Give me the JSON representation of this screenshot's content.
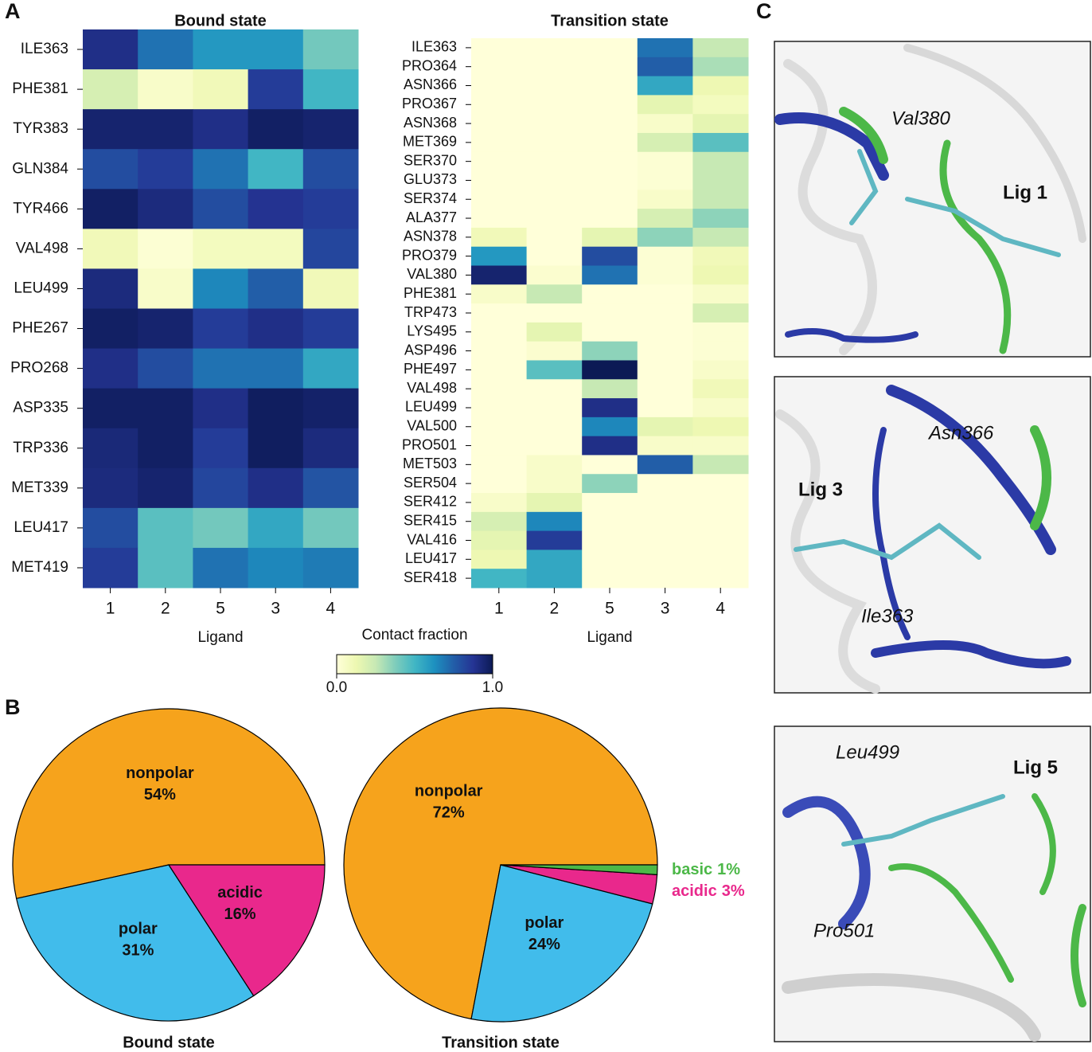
{
  "panels": {
    "a": "A",
    "b": "B",
    "c": "C"
  },
  "chart_data": [
    {
      "type": "heatmap",
      "title": "Bound state",
      "x_label": "Ligand",
      "x_categories": [
        "1",
        "2",
        "5",
        "3",
        "4"
      ],
      "y_categories": [
        "ILE363",
        "PHE381",
        "TYR383",
        "GLN384",
        "TYR466",
        "VAL498",
        "LEU499",
        "PHE267",
        "PRO268",
        "ASP335",
        "TRP336",
        "MET339",
        "LEU417",
        "MET419"
      ],
      "values": [
        [
          0.9,
          0.7,
          0.6,
          0.6,
          0.4
        ],
        [
          0.2,
          0.05,
          0.1,
          0.85,
          0.5
        ],
        [
          0.95,
          0.95,
          0.9,
          0.97,
          0.95
        ],
        [
          0.8,
          0.85,
          0.7,
          0.5,
          0.8
        ],
        [
          0.97,
          0.92,
          0.8,
          0.88,
          0.85
        ],
        [
          0.1,
          0.02,
          0.08,
          0.08,
          0.82
        ],
        [
          0.92,
          0.05,
          0.65,
          0.75,
          0.1
        ],
        [
          0.97,
          0.95,
          0.85,
          0.9,
          0.85
        ],
        [
          0.9,
          0.8,
          0.7,
          0.7,
          0.55
        ],
        [
          0.97,
          0.97,
          0.9,
          0.98,
          0.96
        ],
        [
          0.93,
          0.97,
          0.85,
          0.98,
          0.92
        ],
        [
          0.92,
          0.95,
          0.82,
          0.9,
          0.78
        ],
        [
          0.8,
          0.45,
          0.4,
          0.55,
          0.4
        ],
        [
          0.85,
          0.45,
          0.7,
          0.65,
          0.68
        ]
      ]
    },
    {
      "type": "heatmap",
      "title": "Transition state",
      "x_label": "Ligand",
      "x_categories": [
        "1",
        "2",
        "5",
        "3",
        "4"
      ],
      "y_categories": [
        "ILE363",
        "PRO364",
        "ASN366",
        "PRO367",
        "ASN368",
        "MET369",
        "SER370",
        "GLU373",
        "SER374",
        "ALA377",
        "ASN378",
        "PRO379",
        "VAL380",
        "PHE381",
        "TRP473",
        "LYS495",
        "ASP496",
        "PHE497",
        "VAL498",
        "LEU499",
        "VAL500",
        "PRO501",
        "MET503",
        "SER504",
        "SER412",
        "SER415",
        "VAL416",
        "LEU417",
        "SER418"
      ],
      "values": [
        [
          0,
          0,
          0,
          0.7,
          0.25
        ],
        [
          0,
          0,
          0,
          0.75,
          0.3
        ],
        [
          0,
          0,
          0,
          0.55,
          0.12
        ],
        [
          0,
          0,
          0,
          0.15,
          0.08
        ],
        [
          0,
          0,
          0,
          0.05,
          0.15
        ],
        [
          0,
          0,
          0,
          0.2,
          0.45
        ],
        [
          0,
          0,
          0,
          0.02,
          0.25
        ],
        [
          0,
          0,
          0,
          0.02,
          0.25
        ],
        [
          0,
          0,
          0,
          0.05,
          0.25
        ],
        [
          0,
          0,
          0,
          0.2,
          0.35
        ],
        [
          0.1,
          0,
          0.15,
          0.35,
          0.25
        ],
        [
          0.6,
          0,
          0.8,
          0.02,
          0.1
        ],
        [
          0.95,
          0.03,
          0.7,
          0.02,
          0.12
        ],
        [
          0.05,
          0.25,
          0,
          0,
          0.05
        ],
        [
          0,
          0,
          0,
          0,
          0.2
        ],
        [
          0,
          0.15,
          0,
          0,
          0.02
        ],
        [
          0,
          0.03,
          0.35,
          0,
          0.02
        ],
        [
          0,
          0.45,
          1.0,
          0,
          0.05
        ],
        [
          0,
          0,
          0.25,
          0,
          0.1
        ],
        [
          0,
          0,
          0.9,
          0,
          0.05
        ],
        [
          0,
          0,
          0.65,
          0.15,
          0.12
        ],
        [
          0,
          0,
          0.9,
          0.05,
          0.05
        ],
        [
          0,
          0.05,
          0,
          0.75,
          0.25
        ],
        [
          0,
          0.05,
          0.35,
          0,
          0
        ],
        [
          0.05,
          0.15,
          0,
          0,
          0
        ],
        [
          0.2,
          0.65,
          0,
          0,
          0
        ],
        [
          0.15,
          0.85,
          0,
          0,
          0
        ],
        [
          0.12,
          0.55,
          0,
          0,
          0
        ],
        [
          0.5,
          0.55,
          0,
          0,
          0
        ]
      ]
    },
    {
      "type": "colorbar",
      "title": "Contact fraction",
      "lim": [
        0,
        1
      ],
      "ticks": [
        {
          "value": 0,
          "label": "0.0"
        },
        {
          "value": 1,
          "label": "1.0"
        }
      ],
      "colors": [
        "#ffffd9",
        "#edf8b1",
        "#c7e9b4",
        "#7fcdbb",
        "#41b6c4",
        "#1d91c0",
        "#225ea8",
        "#253494",
        "#0c1a55"
      ]
    },
    {
      "type": "pie",
      "title": "Bound state",
      "categories": [
        "nonpolar",
        "polar",
        "acidic"
      ],
      "values": [
        54,
        31,
        16
      ],
      "value_labels": [
        "54%",
        "31%",
        "16%"
      ],
      "colors": [
        "#f6a31c",
        "#41bceb",
        "#e9288c"
      ]
    },
    {
      "type": "pie",
      "title": "Transition state",
      "categories": [
        "nonpolar",
        "polar",
        "acidic",
        "basic"
      ],
      "values": [
        72,
        24,
        3,
        1
      ],
      "value_labels": [
        "72%",
        "24%",
        "3%",
        "1%"
      ],
      "colors": [
        "#f6a31c",
        "#41bceb",
        "#e9288c",
        "#4cb848"
      ]
    }
  ],
  "structures": [
    {
      "residues": [
        "Val380"
      ],
      "ligand": "Lig 1"
    },
    {
      "residues": [
        "Asn366",
        "Ile363"
      ],
      "ligand": "Lig 3"
    },
    {
      "residues": [
        "Leu499",
        "Pro501"
      ],
      "ligand": "Lig 5"
    }
  ]
}
